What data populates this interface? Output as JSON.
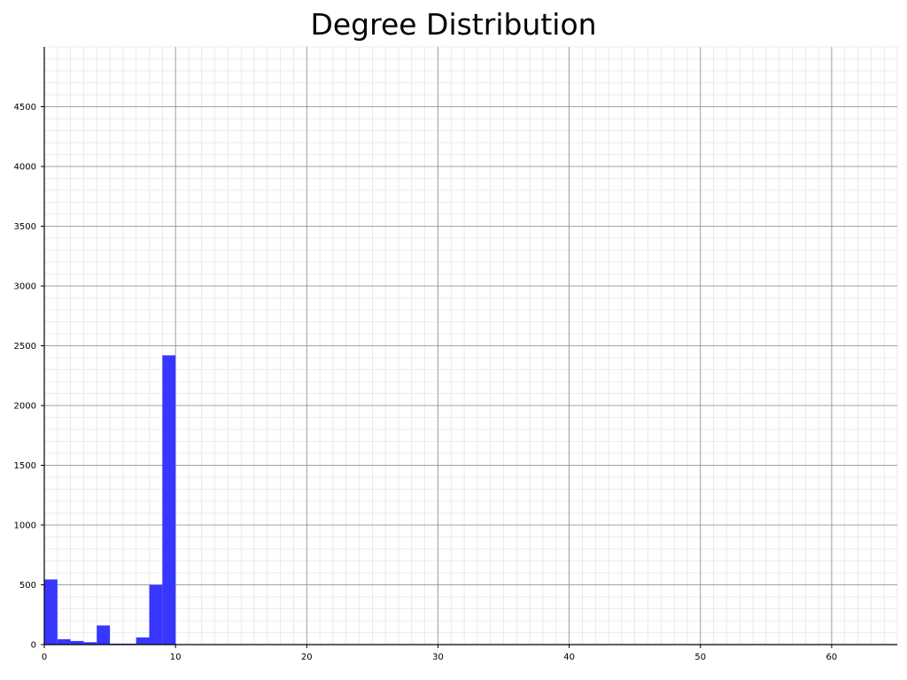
{
  "chart_data": {
    "type": "bar",
    "title": "Degree Distribution",
    "xlabel": "",
    "ylabel": "",
    "xlim": [
      0,
      65
    ],
    "ylim": [
      0,
      5000
    ],
    "x_ticks": [
      0,
      10,
      20,
      30,
      40,
      50,
      60
    ],
    "y_ticks": [
      0,
      500,
      1000,
      1500,
      2000,
      2500,
      3000,
      3500,
      4000,
      4500
    ],
    "grid": true,
    "bar_color": "#3333ff",
    "bins": [
      {
        "x0": 0,
        "x1": 1,
        "value": 545
      },
      {
        "x0": 1,
        "x1": 2,
        "value": 45
      },
      {
        "x0": 2,
        "x1": 3,
        "value": 30
      },
      {
        "x0": 3,
        "x1": 4,
        "value": 20
      },
      {
        "x0": 4,
        "x1": 5,
        "value": 160
      },
      {
        "x0": 5,
        "x1": 6,
        "value": 8
      },
      {
        "x0": 6,
        "x1": 7,
        "value": 8
      },
      {
        "x0": 7,
        "x1": 8,
        "value": 60
      },
      {
        "x0": 8,
        "x1": 9,
        "value": 500
      },
      {
        "x0": 9,
        "x1": 10,
        "value": 2420
      }
    ]
  }
}
